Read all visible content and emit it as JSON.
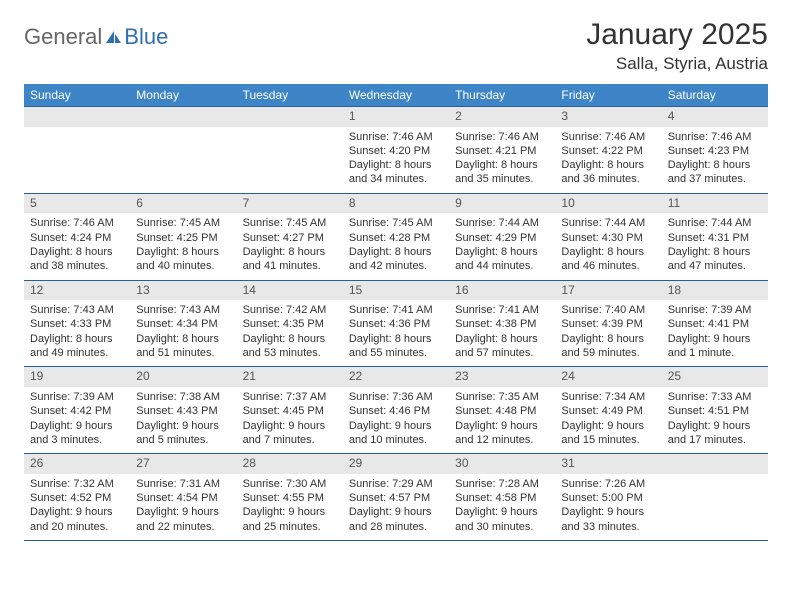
{
  "logo": {
    "word1": "General",
    "word2": "Blue"
  },
  "header": {
    "title": "January 2025",
    "location": "Salla, Styria, Austria"
  },
  "colors": {
    "header_bg": "#3d85c6",
    "header_text": "#ffffff",
    "row_border": "#2a5f91",
    "daynum_bg": "#e8e8e8",
    "daynum_text": "#555555",
    "body_text": "#333333",
    "page_bg": "#ffffff",
    "logo_gray": "#666666",
    "logo_blue": "#2f6fad"
  },
  "weekdays": [
    "Sunday",
    "Monday",
    "Tuesday",
    "Wednesday",
    "Thursday",
    "Friday",
    "Saturday"
  ],
  "first_weekday_index": 3,
  "days": [
    {
      "n": 1,
      "sunrise": "7:46 AM",
      "sunset": "4:20 PM",
      "daylight": "8 hours and 34 minutes."
    },
    {
      "n": 2,
      "sunrise": "7:46 AM",
      "sunset": "4:21 PM",
      "daylight": "8 hours and 35 minutes."
    },
    {
      "n": 3,
      "sunrise": "7:46 AM",
      "sunset": "4:22 PM",
      "daylight": "8 hours and 36 minutes."
    },
    {
      "n": 4,
      "sunrise": "7:46 AM",
      "sunset": "4:23 PM",
      "daylight": "8 hours and 37 minutes."
    },
    {
      "n": 5,
      "sunrise": "7:46 AM",
      "sunset": "4:24 PM",
      "daylight": "8 hours and 38 minutes."
    },
    {
      "n": 6,
      "sunrise": "7:45 AM",
      "sunset": "4:25 PM",
      "daylight": "8 hours and 40 minutes."
    },
    {
      "n": 7,
      "sunrise": "7:45 AM",
      "sunset": "4:27 PM",
      "daylight": "8 hours and 41 minutes."
    },
    {
      "n": 8,
      "sunrise": "7:45 AM",
      "sunset": "4:28 PM",
      "daylight": "8 hours and 42 minutes."
    },
    {
      "n": 9,
      "sunrise": "7:44 AM",
      "sunset": "4:29 PM",
      "daylight": "8 hours and 44 minutes."
    },
    {
      "n": 10,
      "sunrise": "7:44 AM",
      "sunset": "4:30 PM",
      "daylight": "8 hours and 46 minutes."
    },
    {
      "n": 11,
      "sunrise": "7:44 AM",
      "sunset": "4:31 PM",
      "daylight": "8 hours and 47 minutes."
    },
    {
      "n": 12,
      "sunrise": "7:43 AM",
      "sunset": "4:33 PM",
      "daylight": "8 hours and 49 minutes."
    },
    {
      "n": 13,
      "sunrise": "7:43 AM",
      "sunset": "4:34 PM",
      "daylight": "8 hours and 51 minutes."
    },
    {
      "n": 14,
      "sunrise": "7:42 AM",
      "sunset": "4:35 PM",
      "daylight": "8 hours and 53 minutes."
    },
    {
      "n": 15,
      "sunrise": "7:41 AM",
      "sunset": "4:36 PM",
      "daylight": "8 hours and 55 minutes."
    },
    {
      "n": 16,
      "sunrise": "7:41 AM",
      "sunset": "4:38 PM",
      "daylight": "8 hours and 57 minutes."
    },
    {
      "n": 17,
      "sunrise": "7:40 AM",
      "sunset": "4:39 PM",
      "daylight": "8 hours and 59 minutes."
    },
    {
      "n": 18,
      "sunrise": "7:39 AM",
      "sunset": "4:41 PM",
      "daylight": "9 hours and 1 minute."
    },
    {
      "n": 19,
      "sunrise": "7:39 AM",
      "sunset": "4:42 PM",
      "daylight": "9 hours and 3 minutes."
    },
    {
      "n": 20,
      "sunrise": "7:38 AM",
      "sunset": "4:43 PM",
      "daylight": "9 hours and 5 minutes."
    },
    {
      "n": 21,
      "sunrise": "7:37 AM",
      "sunset": "4:45 PM",
      "daylight": "9 hours and 7 minutes."
    },
    {
      "n": 22,
      "sunrise": "7:36 AM",
      "sunset": "4:46 PM",
      "daylight": "9 hours and 10 minutes."
    },
    {
      "n": 23,
      "sunrise": "7:35 AM",
      "sunset": "4:48 PM",
      "daylight": "9 hours and 12 minutes."
    },
    {
      "n": 24,
      "sunrise": "7:34 AM",
      "sunset": "4:49 PM",
      "daylight": "9 hours and 15 minutes."
    },
    {
      "n": 25,
      "sunrise": "7:33 AM",
      "sunset": "4:51 PM",
      "daylight": "9 hours and 17 minutes."
    },
    {
      "n": 26,
      "sunrise": "7:32 AM",
      "sunset": "4:52 PM",
      "daylight": "9 hours and 20 minutes."
    },
    {
      "n": 27,
      "sunrise": "7:31 AM",
      "sunset": "4:54 PM",
      "daylight": "9 hours and 22 minutes."
    },
    {
      "n": 28,
      "sunrise": "7:30 AM",
      "sunset": "4:55 PM",
      "daylight": "9 hours and 25 minutes."
    },
    {
      "n": 29,
      "sunrise": "7:29 AM",
      "sunset": "4:57 PM",
      "daylight": "9 hours and 28 minutes."
    },
    {
      "n": 30,
      "sunrise": "7:28 AM",
      "sunset": "4:58 PM",
      "daylight": "9 hours and 30 minutes."
    },
    {
      "n": 31,
      "sunrise": "7:26 AM",
      "sunset": "5:00 PM",
      "daylight": "9 hours and 33 minutes."
    }
  ],
  "labels": {
    "sunrise_prefix": "Sunrise: ",
    "sunset_prefix": "Sunset: ",
    "daylight_prefix": "Daylight: "
  }
}
